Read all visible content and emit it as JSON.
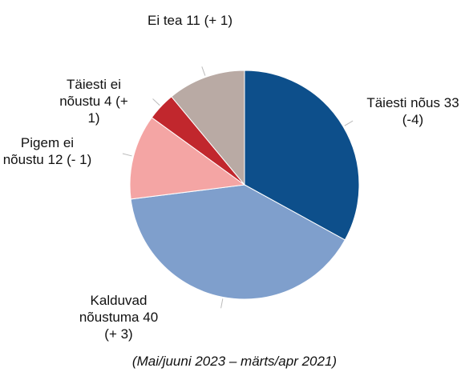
{
  "chart_data": {
    "type": "pie",
    "subtitle": "(Mai/juuni 2023 – märts/apr 2021)",
    "categories": [
      "Täiesti nõus",
      "Kalduvad nõustuma",
      "Pigem ei nõustu",
      "Täiesti ei nõustu",
      "Ei tea"
    ],
    "values": [
      33,
      40,
      12,
      4,
      11
    ],
    "value_labels": [
      "33 (-4)",
      "40 (+ 3)",
      "12 (- 1)",
      "4 (+ 1)",
      "11 (+ 1)"
    ],
    "colors": [
      "#0d4f8b",
      "#7f9fcc",
      "#f4a5a4",
      "#c1272d",
      "#b9aaa4"
    ]
  }
}
